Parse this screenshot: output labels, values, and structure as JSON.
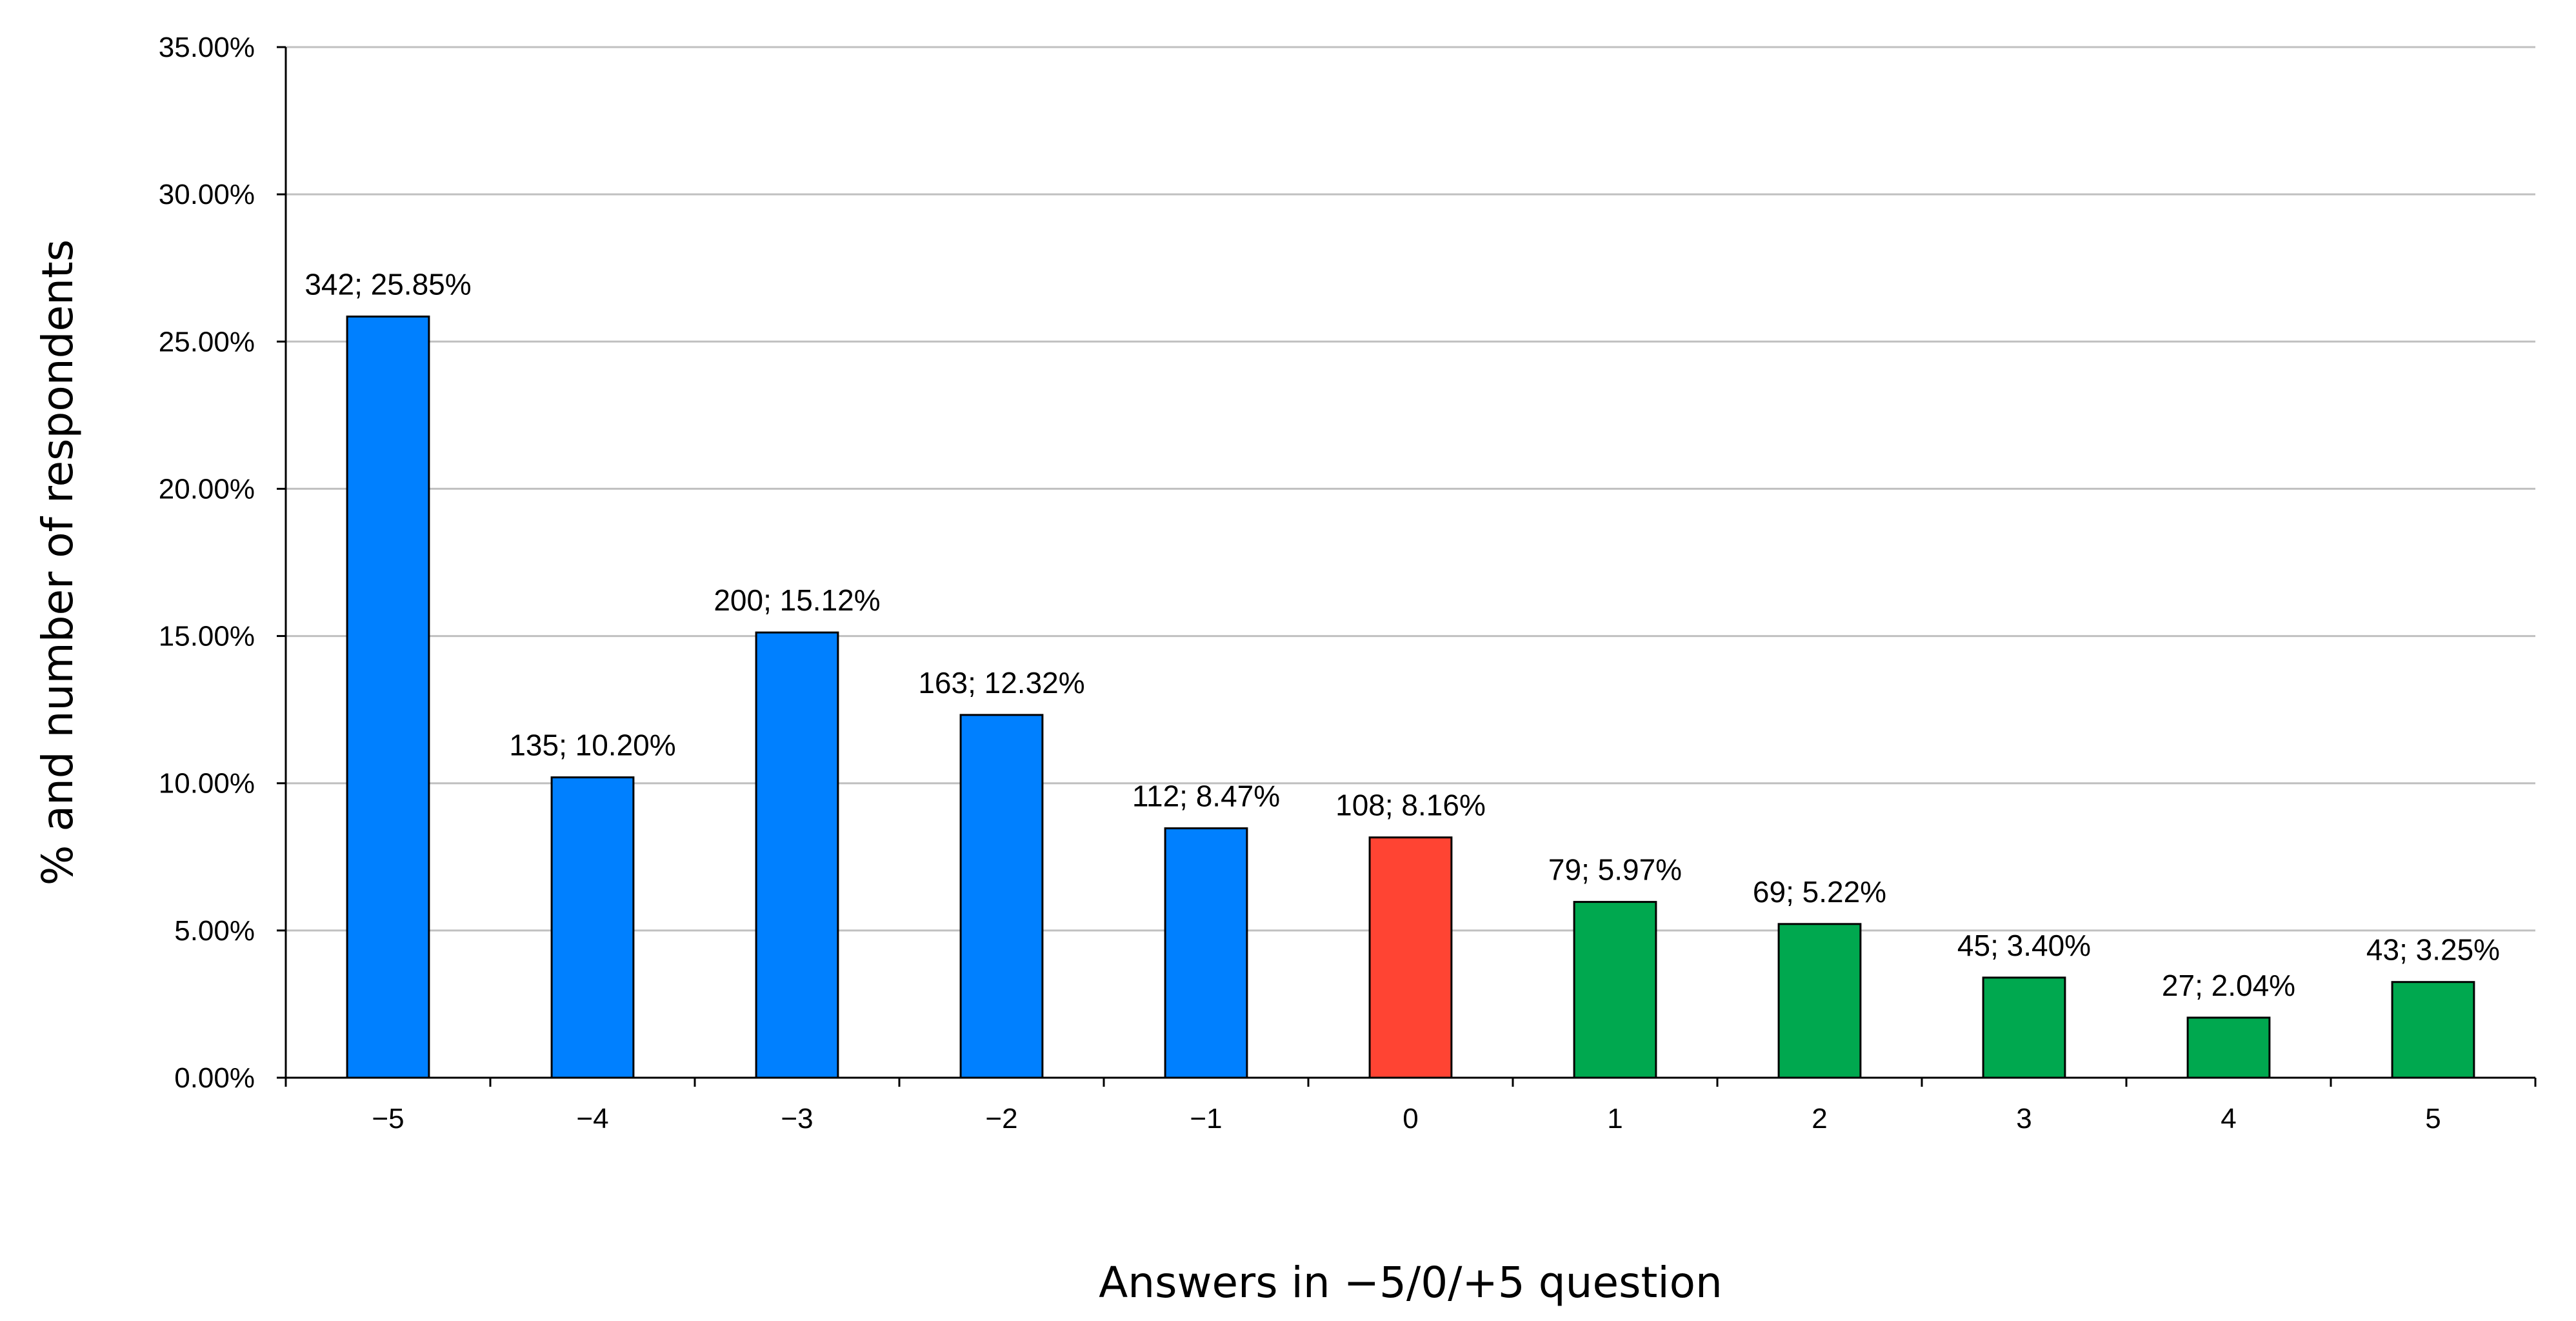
{
  "chart_data": {
    "type": "bar",
    "title": "",
    "xlabel": "Answers in −5/0/+5 question",
    "ylabel": "% and number of respondents",
    "ylim": [
      0,
      35
    ],
    "y_tick_step": 5,
    "y_tick_labels": [
      "0.00%",
      "5.00%",
      "10.00%",
      "15.00%",
      "20.00%",
      "25.00%",
      "30.00%",
      "35.00%"
    ],
    "grid": true,
    "legend": "none",
    "categories": [
      "−5",
      "−4",
      "−3",
      "−2",
      "−1",
      "0",
      "1",
      "2",
      "3",
      "4",
      "5"
    ],
    "counts": [
      342,
      135,
      200,
      163,
      112,
      108,
      79,
      69,
      45,
      27,
      43
    ],
    "values": [
      25.85,
      10.2,
      15.12,
      12.32,
      8.47,
      8.16,
      5.97,
      5.22,
      3.4,
      2.04,
      3.25
    ],
    "data_labels": [
      "342; 25.85%",
      "135; 10.20%",
      "200; 15.12%",
      "163; 12.32%",
      "112; 8.47%",
      "108; 8.16%",
      "79; 5.97%",
      "69; 5.22%",
      "45; 3.40%",
      "27; 2.04%",
      "43; 3.25%"
    ],
    "colors": {
      "negative": "#0080ff",
      "neutral": "#ff4433",
      "positive": "#00a84f"
    },
    "bar_color_groups": [
      "negative",
      "negative",
      "negative",
      "negative",
      "negative",
      "neutral",
      "positive",
      "positive",
      "positive",
      "positive",
      "positive"
    ]
  }
}
